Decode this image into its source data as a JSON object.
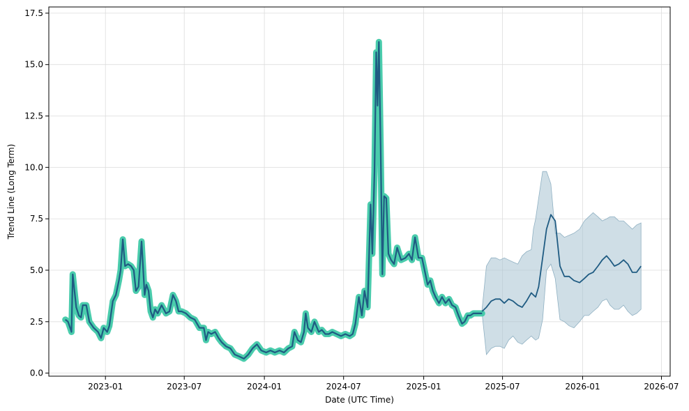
{
  "chart_data": {
    "type": "line",
    "xlabel": "Date (UTC Time)",
    "ylabel": "Trend Line (Long Term)",
    "grid": true,
    "xlim": [
      "2022-08-24",
      "2026-07-21"
    ],
    "ylim": [
      -0.15,
      17.8
    ],
    "x_ticks": [
      "2023-01-01",
      "2023-07-01",
      "2024-01-01",
      "2024-07-01",
      "2025-01-01",
      "2025-07-01",
      "2026-01-01",
      "2026-07-01"
    ],
    "x_tick_labels": [
      "2023-01",
      "2023-07",
      "2024-01",
      "2024-07",
      "2025-01",
      "2025-07",
      "2026-01",
      "2026-07"
    ],
    "y_ticks": [
      0.0,
      2.5,
      5.0,
      7.5,
      10.0,
      12.5,
      15.0,
      17.5
    ],
    "y_tick_labels": [
      "0.0",
      "2.5",
      "5.0",
      "7.5",
      "10.0",
      "12.5",
      "15.0",
      "17.5"
    ],
    "colors": {
      "line": "#1f5b82",
      "history_band": "#40c9a8",
      "forecast_band": "#a8c3d1",
      "grid": "#dddddd",
      "axis": "#000000"
    },
    "series": [
      {
        "role": "history",
        "x": [
          "2022-10-01",
          "2022-10-07",
          "2022-10-12",
          "2022-10-15",
          "2022-10-18",
          "2022-10-22",
          "2022-10-26",
          "2022-11-01",
          "2022-11-06",
          "2022-11-10",
          "2022-11-18",
          "2022-11-25",
          "2022-12-05",
          "2022-12-15",
          "2022-12-22",
          "2022-12-28",
          "2023-01-05",
          "2023-01-10",
          "2023-01-18",
          "2023-01-25",
          "2023-02-01",
          "2023-02-05",
          "2023-02-10",
          "2023-02-15",
          "2023-02-22",
          "2023-03-01",
          "2023-03-07",
          "2023-03-12",
          "2023-03-18",
          "2023-03-25",
          "2023-04-01",
          "2023-04-05",
          "2023-04-10",
          "2023-04-15",
          "2023-04-20",
          "2023-04-25",
          "2023-05-01",
          "2023-05-10",
          "2023-05-20",
          "2023-05-28",
          "2023-06-05",
          "2023-06-12",
          "2023-06-18",
          "2023-06-25",
          "2023-07-05",
          "2023-07-15",
          "2023-07-25",
          "2023-08-05",
          "2023-08-15",
          "2023-08-20",
          "2023-08-25",
          "2023-09-01",
          "2023-09-10",
          "2023-09-18",
          "2023-09-25",
          "2023-10-05",
          "2023-10-15",
          "2023-10-25",
          "2023-11-05",
          "2023-11-15",
          "2023-11-25",
          "2023-12-05",
          "2023-12-15",
          "2023-12-25",
          "2024-01-05",
          "2024-01-15",
          "2024-01-25",
          "2024-02-05",
          "2024-02-15",
          "2024-02-25",
          "2024-03-05",
          "2024-03-10",
          "2024-03-18",
          "2024-03-25",
          "2024-04-01",
          "2024-04-05",
          "2024-04-10",
          "2024-04-18",
          "2024-04-25",
          "2024-05-05",
          "2024-05-12",
          "2024-05-20",
          "2024-05-28",
          "2024-06-05",
          "2024-06-15",
          "2024-06-25",
          "2024-07-05",
          "2024-07-15",
          "2024-07-22",
          "2024-07-28",
          "2024-08-05",
          "2024-08-12",
          "2024-08-18",
          "2024-08-25",
          "2024-09-01",
          "2024-09-05",
          "2024-09-10",
          "2024-09-14",
          "2024-09-17",
          "2024-09-20",
          "2024-09-24",
          "2024-09-28",
          "2024-10-02",
          "2024-10-07",
          "2024-10-12",
          "2024-10-18",
          "2024-10-25",
          "2024-11-01",
          "2024-11-10",
          "2024-11-20",
          "2024-11-28",
          "2024-12-05",
          "2024-12-12",
          "2024-12-20",
          "2024-12-28",
          "2025-01-05",
          "2025-01-10",
          "2025-01-16",
          "2025-01-22",
          "2025-01-28",
          "2025-02-05",
          "2025-02-12",
          "2025-02-20",
          "2025-02-28",
          "2025-03-07",
          "2025-03-15",
          "2025-03-22",
          "2025-03-30",
          "2025-04-05",
          "2025-04-12",
          "2025-04-18",
          "2025-04-25",
          "2025-05-01",
          "2025-05-08",
          "2025-05-15"
        ],
        "y": [
          2.6,
          2.5,
          2.2,
          2.0,
          4.8,
          4.0,
          3.2,
          2.8,
          2.7,
          3.3,
          3.3,
          2.5,
          2.2,
          2.0,
          1.7,
          2.2,
          2.0,
          2.3,
          3.5,
          3.8,
          4.5,
          5.0,
          6.5,
          5.2,
          5.3,
          5.2,
          5.0,
          4.0,
          4.2,
          6.4,
          3.8,
          4.3,
          4.0,
          3.0,
          2.7,
          3.1,
          2.9,
          3.3,
          2.9,
          3.0,
          3.8,
          3.5,
          3.0,
          3.0,
          2.9,
          2.7,
          2.6,
          2.2,
          2.2,
          1.6,
          2.0,
          1.9,
          2.0,
          1.7,
          1.5,
          1.3,
          1.2,
          0.9,
          0.8,
          0.7,
          0.9,
          1.2,
          1.4,
          1.1,
          1.0,
          1.1,
          1.0,
          1.1,
          1.0,
          1.2,
          1.3,
          2.0,
          1.6,
          1.5,
          2.0,
          2.9,
          2.2,
          2.0,
          2.5,
          2.0,
          2.1,
          1.9,
          1.9,
          2.0,
          1.9,
          1.8,
          1.9,
          1.8,
          1.9,
          2.4,
          3.7,
          2.8,
          4.0,
          3.2,
          8.2,
          5.8,
          9.8,
          15.6,
          13.0,
          16.1,
          11.0,
          4.8,
          8.6,
          8.5,
          5.8,
          5.5,
          5.3,
          6.1,
          5.5,
          5.6,
          5.8,
          5.5,
          6.6,
          5.6,
          5.6,
          4.8,
          4.3,
          4.5,
          4.0,
          3.7,
          3.4,
          3.7,
          3.4,
          3.6,
          3.3,
          3.2,
          2.8,
          2.4,
          2.5,
          2.8,
          2.8,
          2.9,
          2.9,
          2.9,
          2.9
        ]
      },
      {
        "role": "forecast",
        "x": [
          "2025-05-15",
          "2025-05-25",
          "2025-06-05",
          "2025-06-15",
          "2025-06-25",
          "2025-07-05",
          "2025-07-15",
          "2025-07-25",
          "2025-08-05",
          "2025-08-15",
          "2025-08-25",
          "2025-09-05",
          "2025-09-10",
          "2025-09-15",
          "2025-09-22",
          "2025-10-01",
          "2025-10-10",
          "2025-10-20",
          "2025-10-30",
          "2025-11-10",
          "2025-11-20",
          "2025-12-01",
          "2025-12-12",
          "2025-12-25",
          "2026-01-05",
          "2026-01-15",
          "2026-01-25",
          "2026-02-05",
          "2026-02-15",
          "2026-02-25",
          "2026-03-05",
          "2026-03-15",
          "2026-03-25",
          "2026-04-05",
          "2026-04-15",
          "2026-04-25",
          "2026-05-05",
          "2026-05-15"
        ],
        "y": [
          3.0,
          3.2,
          3.5,
          3.6,
          3.6,
          3.4,
          3.6,
          3.5,
          3.3,
          3.2,
          3.5,
          3.9,
          3.8,
          3.7,
          4.2,
          5.6,
          7.0,
          7.7,
          7.4,
          5.2,
          4.7,
          4.7,
          4.5,
          4.4,
          4.6,
          4.8,
          4.9,
          5.2,
          5.5,
          5.7,
          5.5,
          5.2,
          5.3,
          5.5,
          5.3,
          4.9,
          4.9,
          5.2
        ],
        "upper": [
          3.1,
          5.2,
          5.6,
          5.6,
          5.5,
          5.6,
          5.5,
          5.4,
          5.3,
          5.7,
          5.9,
          6.0,
          7.0,
          7.5,
          8.5,
          9.8,
          9.8,
          9.2,
          6.8,
          6.8,
          6.6,
          6.7,
          6.8,
          7.0,
          7.4,
          7.6,
          7.8,
          7.6,
          7.4,
          7.5,
          7.6,
          7.6,
          7.4,
          7.4,
          7.2,
          7.0,
          7.2,
          7.3
        ],
        "lower": [
          2.9,
          0.9,
          1.2,
          1.3,
          1.3,
          1.2,
          1.6,
          1.8,
          1.5,
          1.4,
          1.6,
          1.8,
          1.7,
          1.6,
          1.7,
          2.6,
          5.0,
          5.3,
          4.6,
          2.6,
          2.5,
          2.3,
          2.2,
          2.5,
          2.8,
          2.8,
          3.0,
          3.2,
          3.5,
          3.6,
          3.3,
          3.1,
          3.1,
          3.3,
          3.0,
          2.8,
          2.9,
          3.1
        ]
      }
    ]
  }
}
